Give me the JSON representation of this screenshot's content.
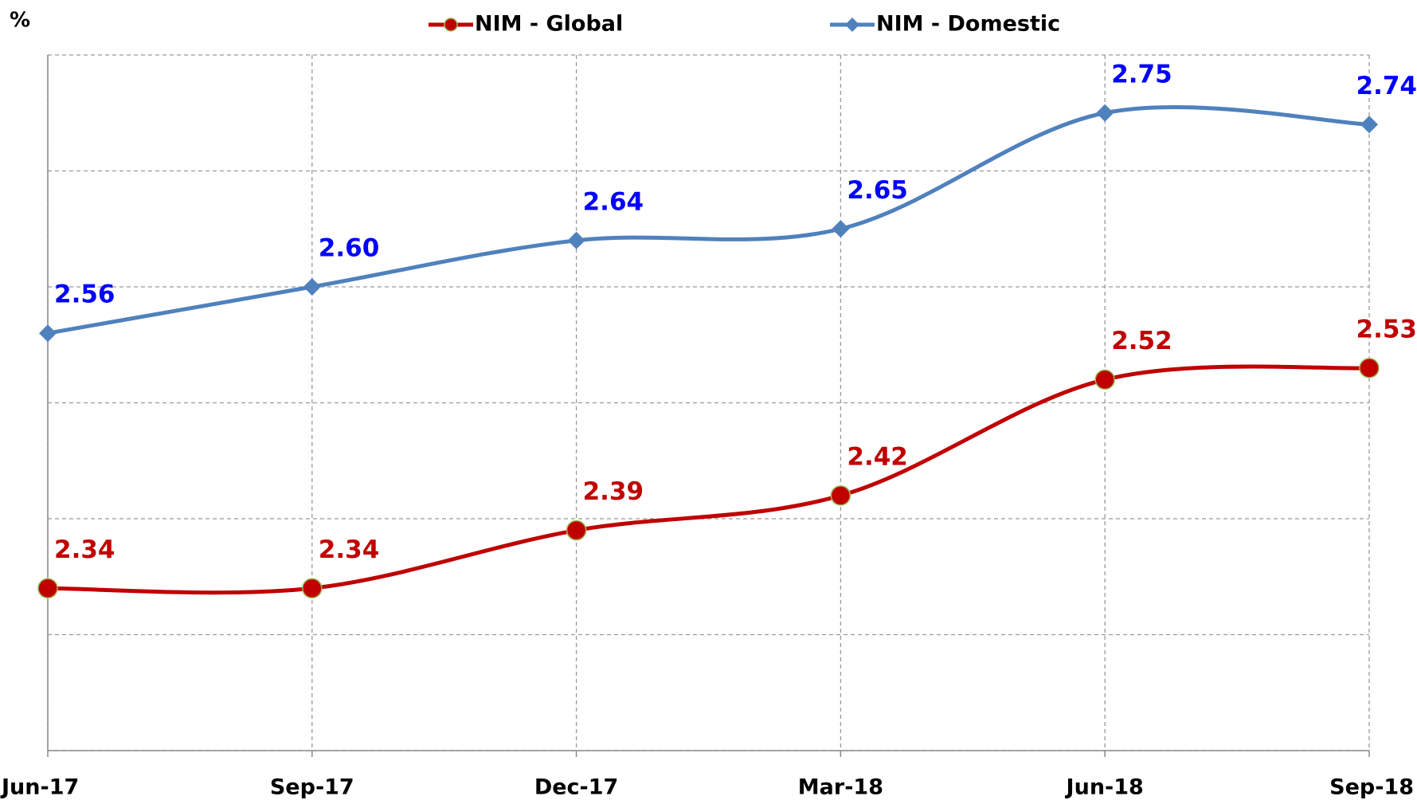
{
  "chart_data": {
    "type": "line",
    "y_label": "%",
    "categories": [
      "Jun-17",
      "Sep-17",
      "Dec-17",
      "Mar-18",
      "Jun-18",
      "Sep-18"
    ],
    "series": [
      {
        "name": "NIM - Global",
        "color": "#c00000",
        "label_color": "#c00000",
        "marker": "circle",
        "values": [
          2.34,
          2.34,
          2.39,
          2.42,
          2.52,
          2.53
        ],
        "value_labels": [
          "2.34",
          "2.34",
          "2.39",
          "2.42",
          "2.52",
          "2.53"
        ]
      },
      {
        "name": "NIM - Domestic",
        "color": "#4f81bd",
        "label_color": "#0000ff",
        "marker": "diamond",
        "values": [
          2.56,
          2.6,
          2.64,
          2.65,
          2.75,
          2.74
        ],
        "value_labels": [
          "2.56",
          "2.60",
          "2.64",
          "2.65",
          "2.75",
          "2.74"
        ]
      }
    ],
    "ylim": [
      2.2,
      2.8
    ],
    "yticks": [
      2.2,
      2.3,
      2.4,
      2.5,
      2.6,
      2.7,
      2.8
    ],
    "grid": true,
    "legend": "top"
  }
}
